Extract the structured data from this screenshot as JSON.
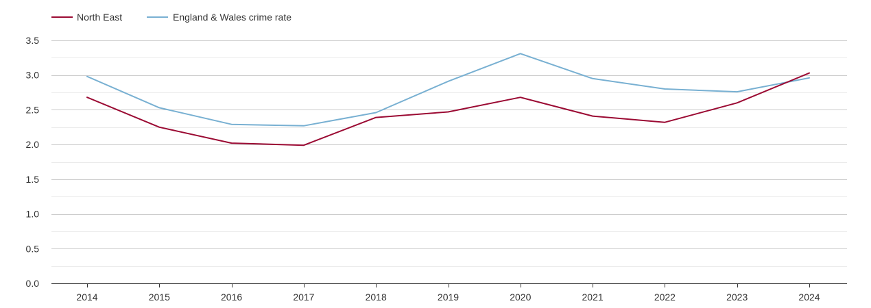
{
  "chart_data": {
    "type": "line",
    "title": "",
    "xlabel": "",
    "ylabel": "",
    "categories": [
      "2014",
      "2015",
      "2016",
      "2017",
      "2018",
      "2019",
      "2020",
      "2021",
      "2022",
      "2023",
      "2024"
    ],
    "ylim": [
      0,
      3.5
    ],
    "yticks": [
      "0.0",
      "0.5",
      "1.0",
      "1.5",
      "2.0",
      "2.5",
      "3.0",
      "3.5"
    ],
    "grid": true,
    "legend_position": "top-left",
    "series": [
      {
        "name": "North East",
        "color": "#9b0a33",
        "values": [
          2.68,
          2.25,
          2.02,
          1.99,
          2.39,
          2.47,
          2.68,
          2.41,
          2.32,
          2.6,
          3.03
        ]
      },
      {
        "name": "England & Wales crime rate",
        "color": "#78b0d2",
        "values": [
          2.98,
          2.53,
          2.29,
          2.27,
          2.46,
          2.91,
          3.31,
          2.95,
          2.8,
          2.76,
          2.96
        ]
      }
    ]
  }
}
